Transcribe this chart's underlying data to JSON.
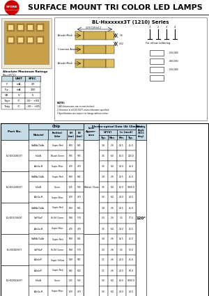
{
  "title": "SURFACE MOUNT TRI COLOR LED LAMPS",
  "series_title": "BL-Hxxxxxx3T (1210) Series",
  "bg_color": "#ffffff",
  "table_header_bg": "#c8dce8",
  "logo_color": "#cc0000",
  "abs_max_title": "Absolute Maximum Ratings",
  "abs_max_subtitle": "(Ta=25°C)",
  "abs_max_rows": [
    [
      "IF",
      "mA",
      "20"
    ],
    [
      "IFp",
      "mA",
      "100"
    ],
    [
      "VR",
      "V",
      "5"
    ],
    [
      "Topr",
      "°C",
      "-30~ +80"
    ],
    [
      "Tstg",
      "°C",
      "-30~ +85"
    ]
  ],
  "rows": [
    [
      "BL-HD1G4B433T",
      "GaAlAs/GaAs",
      "Super Red",
      "660",
      "641",
      "",
      "1.8",
      "2.6",
      "12.5",
      "25.0"
    ],
    [
      "",
      "InGaN",
      "Bluish Green",
      "505",
      "505",
      "",
      "3.5",
      "6.0",
      "63.0",
      "120.0"
    ],
    [
      "",
      "AlInGa.N",
      "Super Blue",
      "470",
      "470",
      "",
      "3.5",
      "6.0",
      "28.0",
      "40.0"
    ],
    [
      "BL-HD1G4B843T",
      "GaAlAs/GaAs",
      "Super Red",
      "660",
      "641",
      "",
      "1.8",
      "2.6",
      "12.5",
      "25.0"
    ],
    [
      "",
      "InGaN",
      "Green",
      "525",
      "525",
      "",
      "3.5",
      "6.0",
      "63.0",
      "1000.0"
    ],
    [
      "",
      "AlInGa.N",
      "Super Blue",
      "470",
      "470",
      "",
      "3.5",
      "6.0",
      "28.0",
      "40.0"
    ],
    [
      "BL-HD1X33843T",
      "GaAlAs/GaAs",
      "Super Red",
      "660",
      "641",
      "",
      "1.8",
      "2.6",
      "12.5",
      "25.0"
    ],
    [
      "",
      "GaP/GaP",
      "Hi-Eff Green",
      "568",
      "570",
      "Water Clear",
      "2.0",
      "2.6",
      "5.5",
      "17.0"
    ],
    [
      "",
      "AlInGa.N",
      "Super Blue",
      "470",
      "470",
      "",
      "3.5",
      "6.0",
      "28.0",
      "40.0"
    ],
    [
      "BL-HD1N1K83T",
      "GaAlAs/GaAs",
      "Super Red",
      "660",
      "641",
      "",
      "1.8",
      "2.6",
      "12.5",
      "25.0"
    ],
    [
      "",
      "GaP/GaP",
      "Hi-Eff Green",
      "568",
      "570",
      "",
      "2.0",
      "2.6",
      "5.5",
      "13.0"
    ],
    [
      "",
      "AlGaInP",
      "Super Yellow",
      "590",
      "587",
      "",
      "2.1",
      "2.6",
      "28.0",
      "45.0"
    ],
    [
      "BL-HD1R6G843T",
      "AlGaInP",
      "Super Red",
      "645",
      "633",
      "",
      "2.1",
      "2.6",
      "28.0",
      "50.0"
    ],
    [
      "",
      "InGaN",
      "Green",
      "525",
      "525",
      "",
      "3.5",
      "6.0",
      "63.0",
      "1000.0"
    ],
    [
      "",
      "AlInGa.N",
      "Super Blue",
      "470",
      "470",
      "",
      "3.5",
      "6.0",
      "28.0",
      "40.0"
    ]
  ],
  "part_groups": [
    [
      0,
      3,
      "BL-HD1G4B433T"
    ],
    [
      3,
      6,
      "BL-HD1G4B843T"
    ],
    [
      6,
      9,
      "BL-HD1X33843T"
    ],
    [
      9,
      12,
      "BL-HD1N1K83T"
    ],
    [
      12,
      15,
      "BL-HD1R6G843T"
    ]
  ],
  "lens_groups": [
    [
      0,
      9,
      "Water Clear"
    ],
    [
      9,
      15,
      ""
    ]
  ],
  "viewing_angle": "120°"
}
